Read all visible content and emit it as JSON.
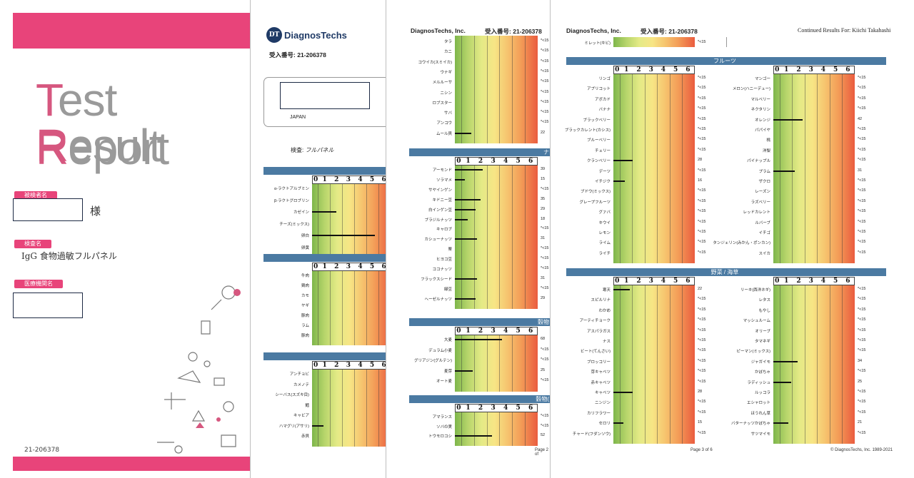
{
  "cover": {
    "title_line1_cap": "T",
    "title_line1_rest": "est ",
    "title_line1_cap2": "R",
    "title_line1_rest2": "esult",
    "title_line2_cap": "R",
    "title_line2_rest": "eport",
    "patient_label": "被検者名",
    "patient_suffix": "様",
    "test_label": "検査名",
    "test_name": "IgG 食物過敏フルパネル",
    "clinic_label": "医療機関名",
    "accession": "21-206378",
    "brand_color": "#e8447a"
  },
  "page1": {
    "logo_text": "DiagnosTechs",
    "logo_mark": "DT",
    "accession_label": "受入番号:",
    "accession": "21-206378",
    "country": "JAPAN",
    "test_label": "検査:",
    "test_value": "フルパネル",
    "sections": [
      {
        "rows": [
          {
            "label": "α-ラクトアルブミン",
            "level": null
          },
          {
            "label": "β-ラクトグロブリン",
            "level": null
          },
          {
            "label": "カゼイン",
            "level": 1.9
          },
          {
            "label": "チーズ(ミックス)",
            "level": null
          },
          {
            "label": "卵白",
            "level": 5.1
          },
          {
            "label": "卵黄",
            "level": null
          }
        ]
      },
      {
        "rows": [
          {
            "label": "牛肉",
            "level": null
          },
          {
            "label": "鶏肉",
            "level": null
          },
          {
            "label": "カモ",
            "level": null
          },
          {
            "label": "ヤギ",
            "level": null
          },
          {
            "label": "豚肉",
            "level": null
          },
          {
            "label": "ラム",
            "level": null
          },
          {
            "label": "豚肉",
            "level": null
          }
        ]
      },
      {
        "rows": [
          {
            "label": "アンチョビ",
            "level": null
          },
          {
            "label": "カメノテ",
            "level": null
          },
          {
            "label": "シーバス(スズキ目)",
            "level": null
          },
          {
            "label": "鱈",
            "level": null
          },
          {
            "label": "キャビア",
            "level": null
          },
          {
            "label": "ハマグリ(アサリ)",
            "level": 0.8
          },
          {
            "label": "赤貝",
            "level": null
          }
        ]
      }
    ]
  },
  "page2": {
    "company": "DiagnosTechs, Inc.",
    "accession_label": "受入番号:",
    "accession": "21-206378",
    "footer": "Page 2 of",
    "fish_rows": [
      {
        "label": "タラ",
        "value": "*<15",
        "level": null
      },
      {
        "label": "カニ",
        "value": "*<15",
        "level": null
      },
      {
        "label": "コウイカ(スミイカ)",
        "value": "*<15",
        "level": null
      },
      {
        "label": "ウナギ",
        "value": "*<15",
        "level": null
      },
      {
        "label": "メルルーサ",
        "value": "*<15",
        "level": null
      },
      {
        "label": "ニシン",
        "value": "*<15",
        "level": null
      },
      {
        "label": "ロブスター",
        "value": "*<15",
        "level": null
      },
      {
        "label": "サバ",
        "value": "*<15",
        "level": null
      },
      {
        "label": "アンコウ",
        "value": "*<15",
        "level": null
      },
      {
        "label": "ムール貝",
        "value": "22",
        "level": 1.2
      }
    ],
    "nut_section_title": "ナ",
    "nut_rows": [
      {
        "label": "アーモンド",
        "value": "39",
        "level": 2.1
      },
      {
        "label": "ソラマメ",
        "value": "15",
        "level": 0.7
      },
      {
        "label": "サヤインゲン",
        "value": "*<15",
        "level": null
      },
      {
        "label": "キドニー豆",
        "value": "35",
        "level": 1.9
      },
      {
        "label": "白インゲン豆",
        "value": "29",
        "level": 1.5
      },
      {
        "label": "ブラジルナッツ",
        "value": "18",
        "level": 0.9
      },
      {
        "label": "キャロブ",
        "value": "*<15",
        "level": null
      },
      {
        "label": "カシューナッツ",
        "value": "31",
        "level": 1.6
      },
      {
        "label": "栗",
        "value": "*<15",
        "level": null
      },
      {
        "label": "ヒヨコ豆",
        "value": "*<15",
        "level": null
      },
      {
        "label": "ココナッツ",
        "value": "*<15",
        "level": null
      },
      {
        "label": "フラックスシード",
        "value": "31",
        "level": 1.6
      },
      {
        "label": "緑豆",
        "value": "*<15",
        "level": null
      },
      {
        "label": "ヘーゼルナッツ",
        "value": "29",
        "level": 1.5
      }
    ],
    "grain_section_title": "穀物",
    "grain_rows": [
      {
        "label": "大麦",
        "value": "68",
        "level": 3.6
      },
      {
        "label": "デュラム小麦",
        "value": "*<15",
        "level": null
      },
      {
        "label": "グリアジン(グルテン)",
        "value": "*<15",
        "level": null
      },
      {
        "label": "麦芽",
        "value": "25",
        "level": 1.3
      },
      {
        "label": "オート麦",
        "value": "*<15",
        "level": null
      }
    ],
    "grain2_section_title": "穀物(",
    "grain2_rows": [
      {
        "label": "アマランス",
        "value": "*<15",
        "level": null
      },
      {
        "label": "ソバの実",
        "value": "*<15",
        "level": null
      },
      {
        "label": "トウモロコシ",
        "value": "52",
        "level": 2.8
      }
    ]
  },
  "page3": {
    "company": "DiagnosTechs, Inc.",
    "accession_label": "受入番号:",
    "accession": "21-206378",
    "continued": "Continued Results For: Kiichi Takahashi",
    "top_row": {
      "label": "ミレット(キビ)",
      "value": "*<15"
    },
    "fruit_title": "フルーツ",
    "fruit_left": [
      {
        "label": "リンゴ",
        "value": "*<15",
        "level": null
      },
      {
        "label": "アプリコット",
        "value": "*<15",
        "level": null
      },
      {
        "label": "アボカド",
        "value": "*<15",
        "level": null
      },
      {
        "label": "バナナ",
        "value": "*<15",
        "level": null
      },
      {
        "label": "ブラックベリー",
        "value": "*<15",
        "level": null
      },
      {
        "label": "ブラックカレント(カシス)",
        "value": "*<15",
        "level": null
      },
      {
        "label": "ブルーベリー",
        "value": "*<15",
        "level": null
      },
      {
        "label": "チェリー",
        "value": "*<15",
        "level": null
      },
      {
        "label": "クランベリー",
        "value": "28",
        "level": 1.4
      },
      {
        "label": "デーツ",
        "value": "*<15",
        "level": null
      },
      {
        "label": "イチジク",
        "value": "16",
        "level": 0.8
      },
      {
        "label": "ブドウ(ミックス)",
        "value": "*<15",
        "level": null
      },
      {
        "label": "グレープフルーツ",
        "value": "*<15",
        "level": null
      },
      {
        "label": "グァバ",
        "value": "*<15",
        "level": null
      },
      {
        "label": "キウイ",
        "value": "*<15",
        "level": null
      },
      {
        "label": "レモン",
        "value": "*<15",
        "level": null
      },
      {
        "label": "ライム",
        "value": "*<15",
        "level": null
      },
      {
        "label": "ライチ",
        "value": "*<15",
        "level": null
      }
    ],
    "fruit_right": [
      {
        "label": "マンゴー",
        "value": "*<15",
        "level": null
      },
      {
        "label": "メロン(ハニーデュー)",
        "value": "*<15",
        "level": null
      },
      {
        "label": "マルベリー",
        "value": "*<15",
        "level": null
      },
      {
        "label": "ネクタリン",
        "value": "*<15",
        "level": null
      },
      {
        "label": "オレンジ",
        "value": "42",
        "level": 2.2
      },
      {
        "label": "パパイヤ",
        "value": "*<15",
        "level": null
      },
      {
        "label": "桃",
        "value": "*<15",
        "level": null
      },
      {
        "label": "洋梨",
        "value": "*<15",
        "level": null
      },
      {
        "label": "パイナップル",
        "value": "*<15",
        "level": null
      },
      {
        "label": "プラム",
        "value": "31",
        "level": 1.6
      },
      {
        "label": "ザクロ",
        "value": "*<15",
        "level": null
      },
      {
        "label": "レーズン",
        "value": "*<15",
        "level": null
      },
      {
        "label": "ラズベリー",
        "value": "*<15",
        "level": null
      },
      {
        "label": "レッドカレント",
        "value": "*<15",
        "level": null
      },
      {
        "label": "ルバーブ",
        "value": "*<15",
        "level": null
      },
      {
        "label": "イチゴ",
        "value": "*<15",
        "level": null
      },
      {
        "label": "タンジェリン(みかん・ポンカン)",
        "value": "*<15",
        "level": null
      },
      {
        "label": "スイカ",
        "value": "*<15",
        "level": null
      }
    ],
    "veg_title": "野菜 / 海草",
    "veg_left": [
      {
        "label": "寒天",
        "value": "22",
        "level": 1.2
      },
      {
        "label": "スピルリナ",
        "value": "*<15",
        "level": null
      },
      {
        "label": "わかめ",
        "value": "*<15",
        "level": null
      },
      {
        "label": "アーティチョーク",
        "value": "*<15",
        "level": null
      },
      {
        "label": "アスパラガス",
        "value": "*<15",
        "level": null
      },
      {
        "label": "ナス",
        "value": "*<15",
        "level": null
      },
      {
        "label": "ビート(てんさい)",
        "value": "*<15",
        "level": null
      },
      {
        "label": "ブロッコリー",
        "value": "*<15",
        "level": null
      },
      {
        "label": "芽キャベツ",
        "value": "*<15",
        "level": null
      },
      {
        "label": "赤キャベツ",
        "value": "*<15",
        "level": null
      },
      {
        "label": "キャベツ",
        "value": "28",
        "level": 1.4
      },
      {
        "label": "ニンジン",
        "value": "*<15",
        "level": null
      },
      {
        "label": "カリフラワー",
        "value": "*<15",
        "level": null
      },
      {
        "label": "セロリ",
        "value": "15",
        "level": 0.7
      },
      {
        "label": "チャード(フダンソウ)",
        "value": "*<15",
        "level": null
      }
    ],
    "veg_right": [
      {
        "label": "リーキ(西洋ネギ)",
        "value": "*<15",
        "level": null
      },
      {
        "label": "レタス",
        "value": "*<15",
        "level": null
      },
      {
        "label": "もやし",
        "value": "*<15",
        "level": null
      },
      {
        "label": "マッシュルーム",
        "value": "*<15",
        "level": null
      },
      {
        "label": "オリーブ",
        "value": "*<15",
        "level": null
      },
      {
        "label": "タマネギ",
        "value": "*<15",
        "level": null
      },
      {
        "label": "ピーマン(ミックス)",
        "value": "*<15",
        "level": null
      },
      {
        "label": "ジャガイモ",
        "value": "34",
        "level": 1.8
      },
      {
        "label": "かぼちゃ",
        "value": "*<15",
        "level": null
      },
      {
        "label": "ラディッシュ",
        "value": "25",
        "level": 1.3
      },
      {
        "label": "ルッコラ",
        "value": "*<15",
        "level": null
      },
      {
        "label": "エシャロット",
        "value": "*<15",
        "level": null
      },
      {
        "label": "ほうれん草",
        "value": "*<15",
        "level": null
      },
      {
        "label": "バターナッツかぼちゃ",
        "value": "21",
        "level": 1.1
      },
      {
        "label": "サツマイモ",
        "value": "*<15",
        "level": null
      }
    ],
    "footer_page": "Page 3 of 6",
    "footer_copy": "© DiagnosTechs, Inc. 1989-2021"
  },
  "scale_labels": [
    "0",
    "1",
    "2",
    "3",
    "4",
    "5",
    "6"
  ]
}
